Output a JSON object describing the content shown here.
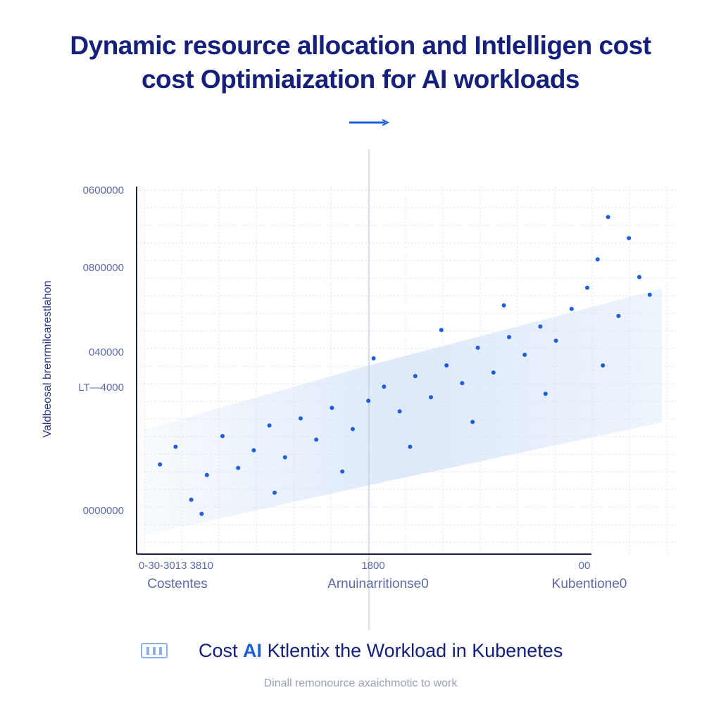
{
  "title": {
    "line1": "Dynamic resource allocation and Intlelligen cost",
    "line2": "cost Optimiaization for AI workloads"
  },
  "legend": {
    "prefix": "Cost",
    "highlight": "AI",
    "suffix": "Ktlentix the Workload in Kubenetes"
  },
  "footnote": "Dinall remonource axaichmotic to work",
  "colors": {
    "title": "#14207a",
    "point": "#1f5fd6",
    "band": "#cfe0f7",
    "grid": "#d9dde8",
    "axis": "#1b2250"
  },
  "chart_data": {
    "type": "scatter",
    "title": "",
    "ylabel": "Valdbeosal brenrmilcarestlahon",
    "y_ticks": [
      "0600000",
      "0800000",
      "040000",
      "LT—4000",
      "0000000"
    ],
    "x_ticks": [
      "0-30-3013 3810",
      "1800",
      "00"
    ],
    "x_category_labels": [
      "Costentes",
      "Arnuinarritionse0",
      "Kubentione0"
    ],
    "x_range": [
      0,
      1
    ],
    "y_range": [
      0,
      1
    ],
    "grid": true,
    "trend": "increasing",
    "points": [
      {
        "x": 0.03,
        "y": 0.22
      },
      {
        "x": 0.06,
        "y": 0.27
      },
      {
        "x": 0.09,
        "y": 0.12
      },
      {
        "x": 0.12,
        "y": 0.19
      },
      {
        "x": 0.15,
        "y": 0.3
      },
      {
        "x": 0.18,
        "y": 0.21
      },
      {
        "x": 0.21,
        "y": 0.26
      },
      {
        "x": 0.24,
        "y": 0.33
      },
      {
        "x": 0.27,
        "y": 0.24
      },
      {
        "x": 0.3,
        "y": 0.35
      },
      {
        "x": 0.33,
        "y": 0.29
      },
      {
        "x": 0.36,
        "y": 0.38
      },
      {
        "x": 0.4,
        "y": 0.32
      },
      {
        "x": 0.43,
        "y": 0.4
      },
      {
        "x": 0.46,
        "y": 0.44
      },
      {
        "x": 0.49,
        "y": 0.37
      },
      {
        "x": 0.52,
        "y": 0.47
      },
      {
        "x": 0.55,
        "y": 0.41
      },
      {
        "x": 0.58,
        "y": 0.5
      },
      {
        "x": 0.61,
        "y": 0.45
      },
      {
        "x": 0.64,
        "y": 0.55
      },
      {
        "x": 0.67,
        "y": 0.48
      },
      {
        "x": 0.7,
        "y": 0.58
      },
      {
        "x": 0.73,
        "y": 0.53
      },
      {
        "x": 0.76,
        "y": 0.61
      },
      {
        "x": 0.79,
        "y": 0.57
      },
      {
        "x": 0.82,
        "y": 0.66
      },
      {
        "x": 0.85,
        "y": 0.72
      },
      {
        "x": 0.87,
        "y": 0.8
      },
      {
        "x": 0.89,
        "y": 0.92
      },
      {
        "x": 0.91,
        "y": 0.64
      },
      {
        "x": 0.93,
        "y": 0.86
      },
      {
        "x": 0.95,
        "y": 0.75
      },
      {
        "x": 0.97,
        "y": 0.7
      },
      {
        "x": 0.11,
        "y": 0.08
      },
      {
        "x": 0.25,
        "y": 0.14
      },
      {
        "x": 0.38,
        "y": 0.2
      },
      {
        "x": 0.51,
        "y": 0.27
      },
      {
        "x": 0.63,
        "y": 0.34
      },
      {
        "x": 0.77,
        "y": 0.42
      },
      {
        "x": 0.88,
        "y": 0.5
      },
      {
        "x": 0.44,
        "y": 0.52
      },
      {
        "x": 0.57,
        "y": 0.6
      },
      {
        "x": 0.69,
        "y": 0.67
      }
    ]
  }
}
